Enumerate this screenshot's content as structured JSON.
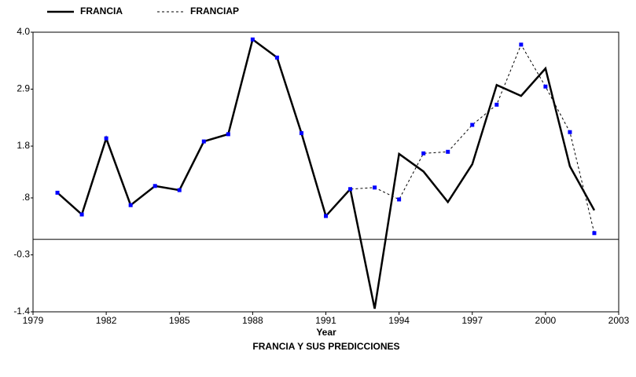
{
  "chart_data": {
    "type": "line",
    "title": "FRANCIA Y SUS PREDICCIONES",
    "x_label": "Year",
    "x": [
      1980,
      1981,
      1982,
      1983,
      1984,
      1985,
      1986,
      1987,
      1988,
      1989,
      1990,
      1991,
      1992,
      1993,
      1994,
      1995,
      1996,
      1997,
      1998,
      1999,
      2000,
      2001,
      2002
    ],
    "series": [
      {
        "name": "FRANCIA",
        "color": "#000000",
        "values": [
          0.9,
          0.48,
          1.95,
          0.66,
          1.03,
          0.95,
          1.89,
          2.03,
          3.86,
          3.51,
          2.05,
          0.45,
          0.97,
          -1.34,
          1.65,
          1.31,
          0.72,
          1.45,
          2.98,
          2.77,
          3.3,
          1.41,
          0.56
        ]
      },
      {
        "name": "FRANCIAP",
        "color": "#000000",
        "marker_color": "#0000ff",
        "values": [
          0.9,
          0.48,
          1.95,
          0.66,
          1.03,
          0.95,
          1.89,
          2.03,
          3.86,
          3.51,
          2.05,
          0.45,
          0.97,
          1.0,
          0.77,
          1.66,
          1.69,
          2.21,
          2.6,
          3.76,
          2.95,
          2.07,
          0.12
        ]
      }
    ],
    "xlim": [
      1979,
      2003
    ],
    "xticks": [
      1979,
      1982,
      1985,
      1988,
      1991,
      1994,
      1997,
      2000,
      2003
    ],
    "ylim": [
      -1.4,
      4
    ],
    "yticks": [
      -1.4,
      -0.3,
      {
        "value": 0.8,
        "label": ".8"
      },
      1.8,
      2.9,
      {
        "value": 4,
        "label": "4.0"
      }
    ],
    "legend": "top-left"
  }
}
